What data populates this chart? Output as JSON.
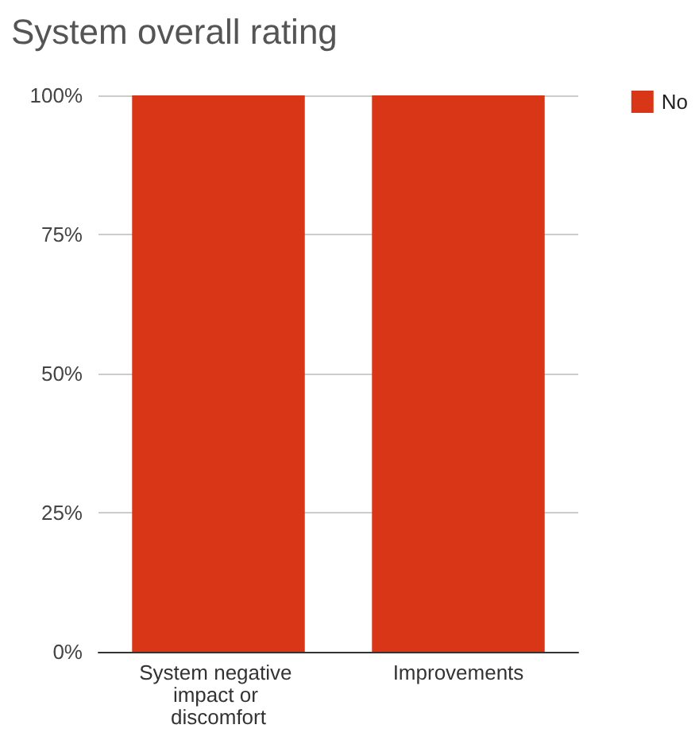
{
  "chart_data": {
    "type": "bar",
    "title": "System overall rating",
    "categories": [
      "System negative impact or discomfort",
      "Improvements"
    ],
    "series": [
      {
        "name": "No",
        "color": "#d83616",
        "values": [
          100,
          100
        ]
      }
    ],
    "ylim": [
      0,
      100
    ],
    "yticks": [
      {
        "value": 0,
        "label": "0%"
      },
      {
        "value": 25,
        "label": "25%"
      },
      {
        "value": 50,
        "label": "50%"
      },
      {
        "value": 75,
        "label": "75%"
      },
      {
        "value": 100,
        "label": "100%"
      }
    ],
    "grid": "y",
    "legend": "top right"
  }
}
